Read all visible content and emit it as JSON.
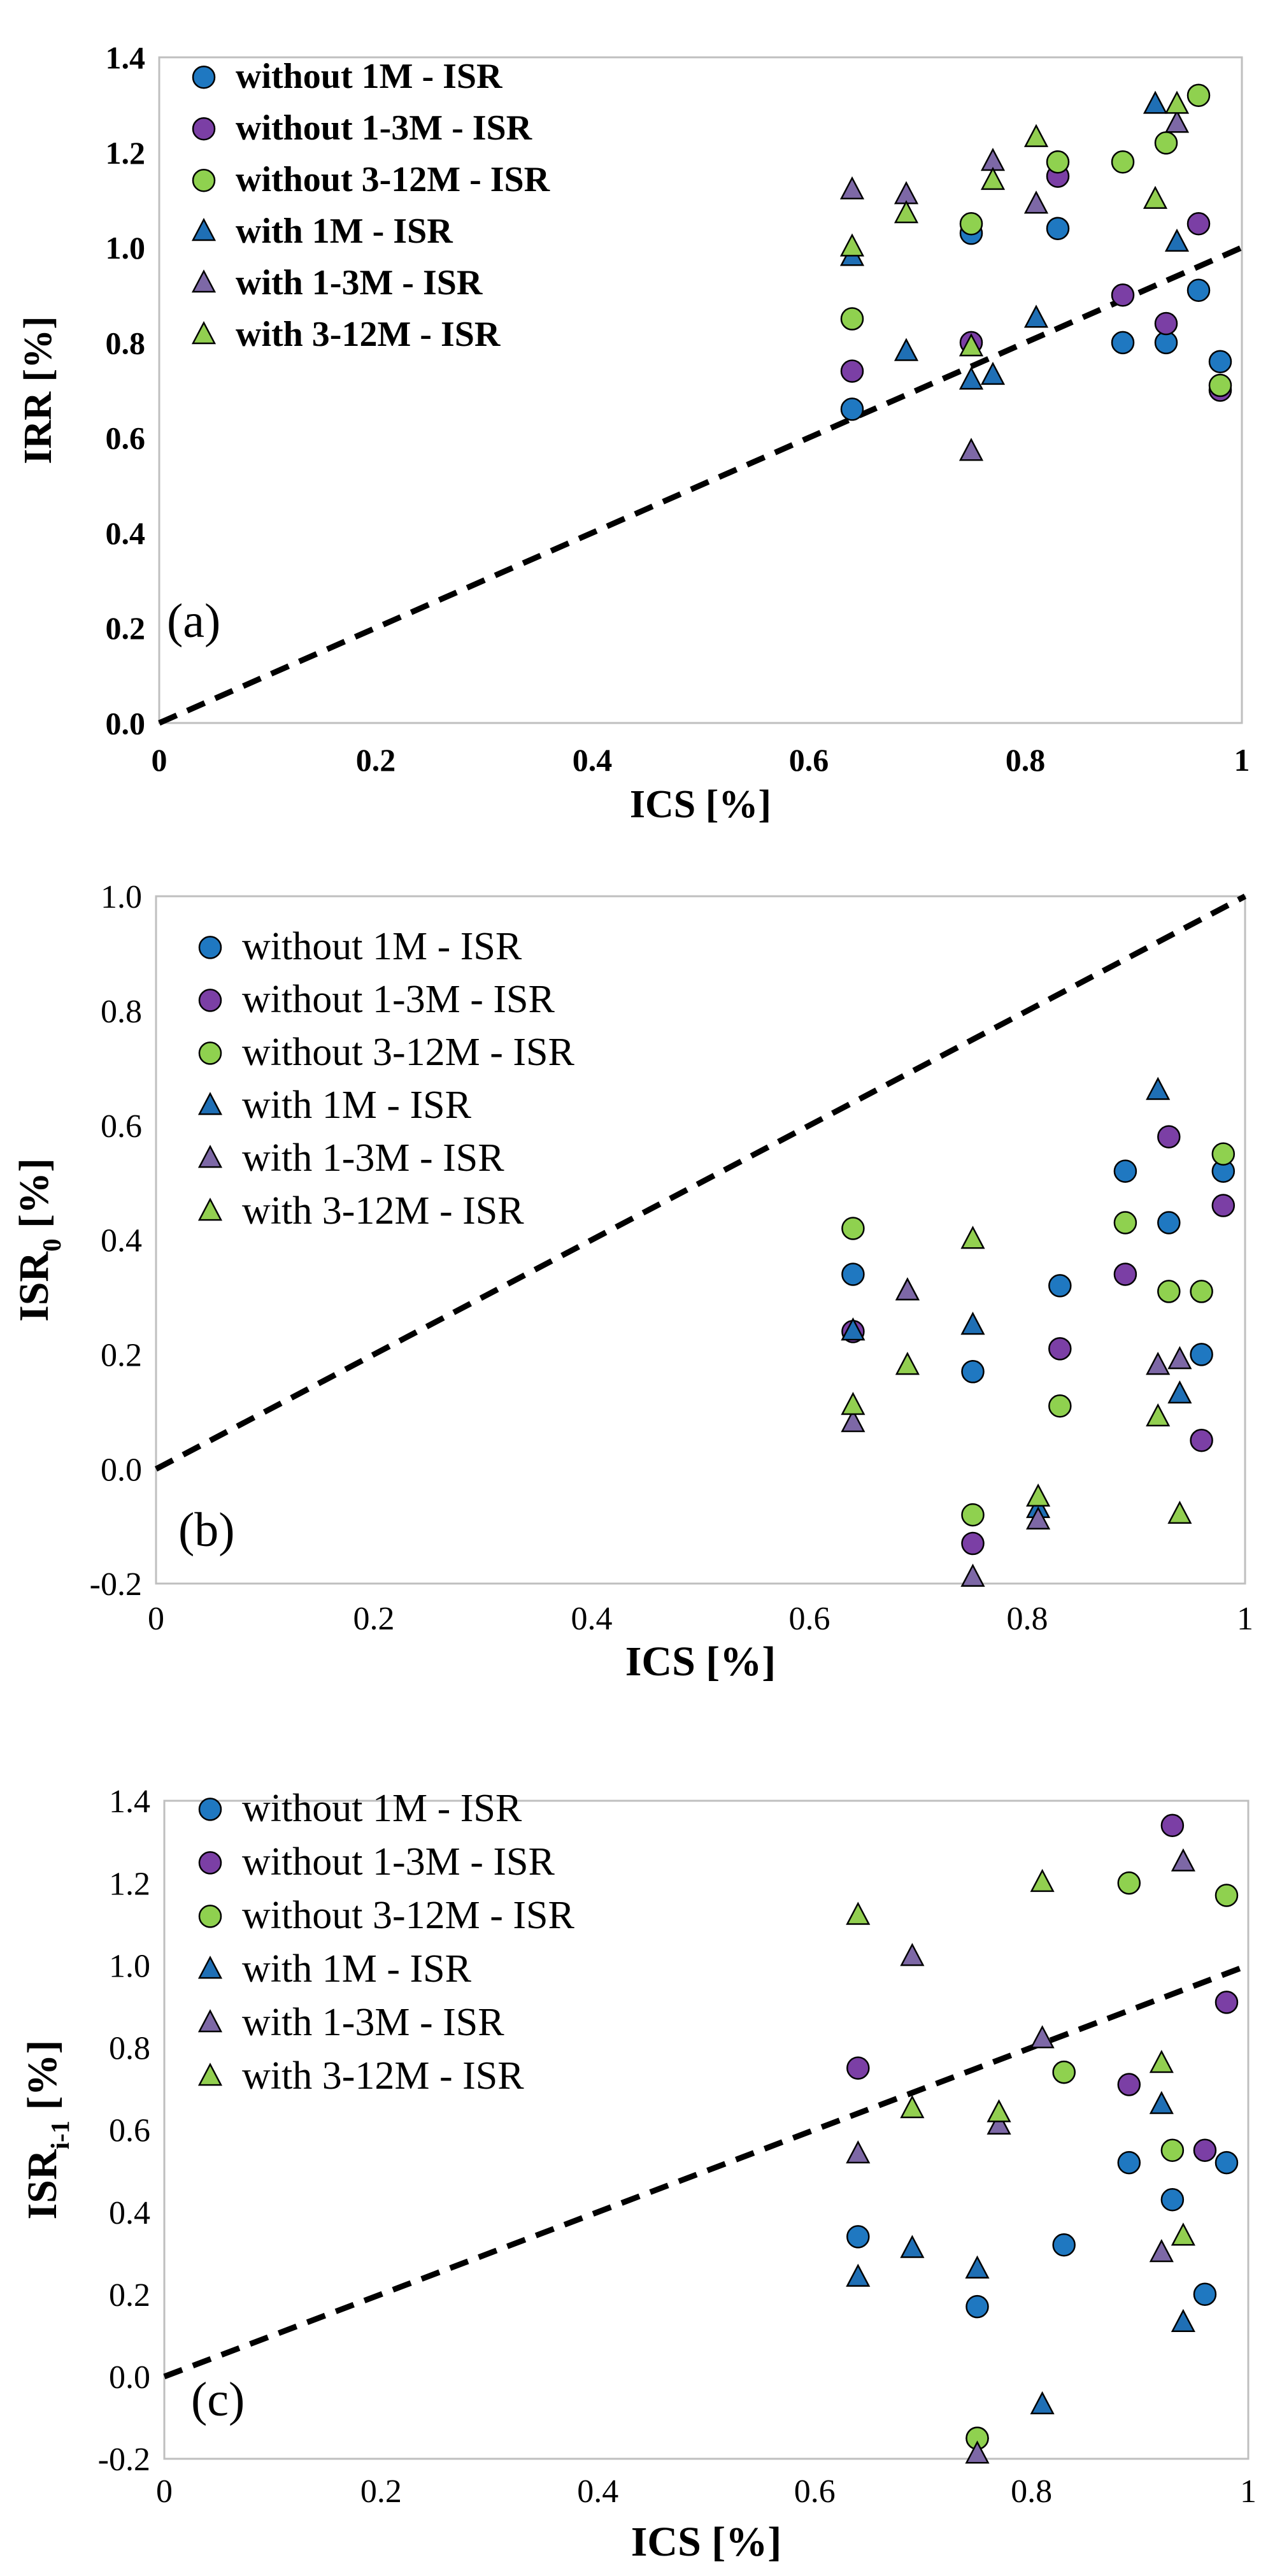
{
  "colors": {
    "blue": "#1f78c1",
    "purple": "#7b3fa5",
    "green": "#8fd14f",
    "blue_tri": "#1f6fb5",
    "purple_tri": "#7d68a6",
    "green_tri": "#92cf50",
    "axis": "#bfbfbf",
    "frame": "#bfbfbf",
    "marker_edge": "#000000"
  },
  "chart_data": [
    {
      "type": "scatter",
      "panel_label": "(a)",
      "xlabel": "ICS [%]",
      "ylabel": "IRR [%]",
      "ylabel_sub": "",
      "xlim": [
        0,
        1
      ],
      "ylim": [
        0,
        1.4
      ],
      "xticks": [
        "0",
        "0.2",
        "0.4",
        "0.6",
        "0.8",
        "1"
      ],
      "yticks": [
        "0.0",
        "0.2",
        "0.4",
        "0.6",
        "0.8",
        "1.0",
        "1.2",
        "1.4"
      ],
      "bold_ticks": true,
      "legend_position": "top-left",
      "reference_line": {
        "style": "dashed",
        "slope": 1,
        "intercept": 0
      },
      "series": [
        {
          "name": "without 1M - ISR",
          "marker": "circle",
          "color": "blue",
          "x": [
            0.64,
            0.75,
            0.83,
            0.89,
            0.93,
            0.96,
            0.98
          ],
          "y": [
            0.66,
            1.03,
            1.04,
            0.8,
            0.8,
            0.91,
            0.76
          ]
        },
        {
          "name": "without 1-3M - ISR",
          "marker": "circle",
          "color": "purple",
          "x": [
            0.64,
            0.75,
            0.83,
            0.89,
            0.93,
            0.96,
            0.98
          ],
          "y": [
            0.74,
            0.8,
            1.15,
            0.9,
            0.84,
            1.05,
            0.7
          ]
        },
        {
          "name": "without 3-12M - ISR",
          "marker": "circle",
          "color": "green",
          "x": [
            0.64,
            0.75,
            0.83,
            0.89,
            0.93,
            0.96,
            0.98
          ],
          "y": [
            0.85,
            1.05,
            1.18,
            1.18,
            1.22,
            1.32,
            0.71
          ]
        },
        {
          "name": "with 1M - ISR",
          "marker": "triangle",
          "color": "blue_tri",
          "x": [
            0.64,
            0.69,
            0.75,
            0.77,
            0.81,
            0.92,
            0.94
          ],
          "y": [
            0.98,
            0.78,
            0.72,
            0.73,
            0.85,
            1.3,
            1.01
          ]
        },
        {
          "name": "with 1-3M - ISR",
          "marker": "triangle",
          "color": "purple_tri",
          "x": [
            0.64,
            0.69,
            0.75,
            0.77,
            0.81,
            0.94
          ],
          "y": [
            1.12,
            1.11,
            0.57,
            1.18,
            1.09,
            1.26
          ]
        },
        {
          "name": "with 3-12M - ISR",
          "marker": "triangle",
          "color": "green_tri",
          "x": [
            0.64,
            0.69,
            0.75,
            0.77,
            0.81,
            0.92,
            0.94
          ],
          "y": [
            1.0,
            1.07,
            0.79,
            1.14,
            1.23,
            1.1,
            1.3
          ]
        }
      ]
    },
    {
      "type": "scatter",
      "panel_label": "(b)",
      "xlabel": "ICS [%]",
      "ylabel": "ISR",
      "ylabel_sub": "0",
      "ylabel_suffix": " [%]",
      "xlim": [
        0,
        1
      ],
      "ylim": [
        -0.2,
        1.0
      ],
      "xticks": [
        "0",
        "0.2",
        "0.4",
        "0.6",
        "0.8",
        "1"
      ],
      "yticks": [
        "-0.2",
        "0.0",
        "0.2",
        "0.4",
        "0.6",
        "0.8",
        "1.0"
      ],
      "bold_ticks": false,
      "legend_position": "top-left",
      "reference_line": {
        "style": "dashed",
        "slope": 1,
        "intercept": 0
      },
      "series": [
        {
          "name": "without 1M - ISR",
          "marker": "circle",
          "color": "blue",
          "x": [
            0.64,
            0.75,
            0.83,
            0.89,
            0.93,
            0.96,
            0.98
          ],
          "y": [
            0.34,
            0.17,
            0.32,
            0.52,
            0.43,
            0.2,
            0.52
          ]
        },
        {
          "name": "without 1-3M - ISR",
          "marker": "circle",
          "color": "purple",
          "x": [
            0.64,
            0.75,
            0.83,
            0.89,
            0.93,
            0.96,
            0.98
          ],
          "y": [
            0.24,
            -0.13,
            0.21,
            0.34,
            0.58,
            0.05,
            0.46
          ]
        },
        {
          "name": "without 3-12M - ISR",
          "marker": "circle",
          "color": "green",
          "x": [
            0.64,
            0.75,
            0.83,
            0.89,
            0.93,
            0.96,
            0.98
          ],
          "y": [
            0.42,
            -0.08,
            0.11,
            0.43,
            0.31,
            0.31,
            0.55
          ]
        },
        {
          "name": "with 1M - ISR",
          "marker": "triangle",
          "color": "blue_tri",
          "x": [
            0.64,
            0.69,
            0.75,
            0.81,
            0.92,
            0.94
          ],
          "y": [
            0.24,
            0.31,
            0.25,
            -0.07,
            0.66,
            0.13
          ]
        },
        {
          "name": "with 1-3M - ISR",
          "marker": "triangle",
          "color": "purple_tri",
          "x": [
            0.64,
            0.69,
            0.75,
            0.81,
            0.92,
            0.94
          ],
          "y": [
            0.08,
            0.31,
            -0.19,
            -0.09,
            0.18,
            0.19
          ]
        },
        {
          "name": "with 3-12M - ISR",
          "marker": "triangle",
          "color": "green_tri",
          "x": [
            0.64,
            0.69,
            0.75,
            0.81,
            0.92,
            0.94
          ],
          "y": [
            0.11,
            0.18,
            0.4,
            -0.05,
            0.09,
            -0.08
          ]
        }
      ]
    },
    {
      "type": "scatter",
      "panel_label": "(c)",
      "xlabel": "ICS [%]",
      "ylabel": "ISR",
      "ylabel_sub": "i-1",
      "ylabel_suffix": " [%]",
      "xlim": [
        0,
        1
      ],
      "ylim": [
        -0.2,
        1.4
      ],
      "xticks": [
        "0",
        "0.2",
        "0.4",
        "0.6",
        "0.8",
        "1"
      ],
      "yticks": [
        "-0.2",
        "0.0",
        "0.2",
        "0.4",
        "0.6",
        "0.8",
        "1.0",
        "1.2",
        "1.4"
      ],
      "bold_ticks": false,
      "legend_position": "top-left",
      "reference_line": {
        "style": "dashed",
        "slope": 1,
        "intercept": 0
      },
      "series": [
        {
          "name": "without 1M - ISR",
          "marker": "circle",
          "color": "blue",
          "x": [
            0.64,
            0.75,
            0.83,
            0.89,
            0.93,
            0.96,
            0.98
          ],
          "y": [
            0.34,
            0.17,
            0.32,
            0.52,
            0.43,
            0.2,
            0.52
          ]
        },
        {
          "name": "without 1-3M - ISR",
          "marker": "circle",
          "color": "purple",
          "x": [
            0.64,
            0.75,
            0.83,
            0.89,
            0.93,
            0.96,
            0.98
          ],
          "y": [
            0.75,
            -0.15,
            0.74,
            0.71,
            1.34,
            0.55,
            0.91
          ]
        },
        {
          "name": "without 3-12M - ISR",
          "marker": "circle",
          "color": "green",
          "x": [
            0.75,
            0.83,
            0.89,
            0.93,
            0.98
          ],
          "y": [
            -0.15,
            0.74,
            1.2,
            0.55,
            1.17
          ]
        },
        {
          "name": "with 1M - ISR",
          "marker": "triangle",
          "color": "blue_tri",
          "x": [
            0.64,
            0.69,
            0.75,
            0.81,
            0.92,
            0.94
          ],
          "y": [
            0.24,
            0.31,
            0.26,
            -0.07,
            0.66,
            0.13
          ]
        },
        {
          "name": "with 1-3M - ISR",
          "marker": "triangle",
          "color": "purple_tri",
          "x": [
            0.64,
            0.69,
            0.75,
            0.77,
            0.81,
            0.92,
            0.94
          ],
          "y": [
            0.54,
            1.02,
            -0.19,
            0.61,
            0.82,
            0.3,
            1.25
          ]
        },
        {
          "name": "with 3-12M - ISR",
          "marker": "triangle",
          "color": "green_tri",
          "x": [
            0.64,
            0.69,
            0.77,
            0.81,
            0.92,
            0.94
          ],
          "y": [
            1.12,
            0.65,
            0.64,
            1.2,
            0.76,
            0.34
          ]
        }
      ]
    }
  ]
}
